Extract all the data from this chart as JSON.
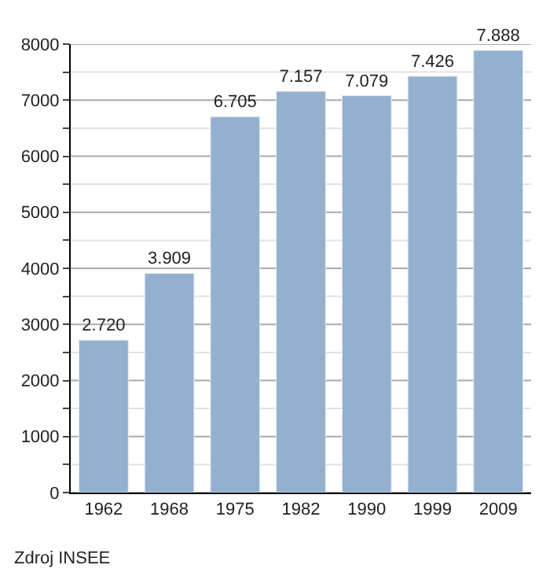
{
  "chart_data": {
    "type": "bar",
    "categories": [
      "1962",
      "1968",
      "1975",
      "1982",
      "1990",
      "1999",
      "2009"
    ],
    "values": [
      2720,
      3909,
      6705,
      7157,
      7079,
      7426,
      7888
    ],
    "value_labels": [
      "2.720",
      "3.909",
      "6.705",
      "7.157",
      "7.079",
      "7.426",
      "7.888"
    ],
    "color": "#93b0cf",
    "ylim": [
      0,
      8000
    ],
    "yticks": [
      0,
      {
        "value": 500,
        "label": null
      },
      1000,
      {
        "value": 1500,
        "label": null
      },
      2000,
      {
        "value": 2500,
        "label": null
      },
      3000,
      {
        "value": 3500,
        "label": null
      },
      4000,
      {
        "value": 4500,
        "label": null
      },
      5000,
      {
        "value": 5500,
        "label": null
      },
      6000,
      {
        "value": 6500,
        "label": null
      },
      7000,
      {
        "value": 7500,
        "label": null
      },
      8000
    ],
    "grid": "y",
    "annotations": [
      "Zdroj INSEE"
    ]
  }
}
